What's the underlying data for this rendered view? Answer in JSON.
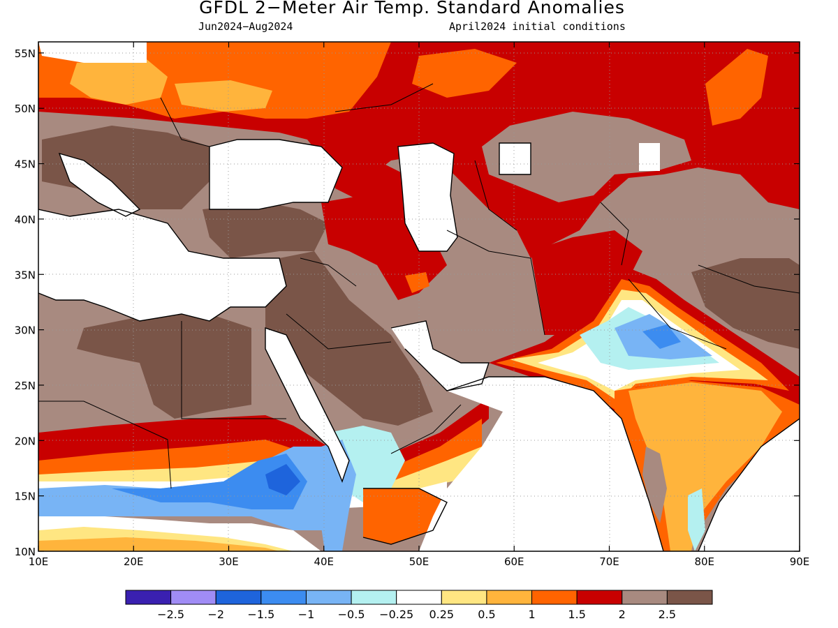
{
  "title": "GFDL 2−Meter Air Temp. Standard Anomalies",
  "subtitle_left": "Jun2024−Aug2024",
  "subtitle_right": "April2024 initial conditions",
  "map": {
    "lon_range": [
      10,
      90
    ],
    "lat_range": [
      10,
      56
    ],
    "lon_ticks": [
      "10E",
      "20E",
      "30E",
      "40E",
      "50E",
      "60E",
      "70E",
      "80E",
      "90E"
    ],
    "lat_ticks": [
      "10N",
      "15N",
      "20N",
      "25N",
      "30N",
      "35N",
      "40N",
      "45N",
      "50N",
      "55N"
    ],
    "gridlines": "dotted"
  },
  "colorbar": {
    "colors": [
      "#3a20b0",
      "#a08cf5",
      "#1e64dc",
      "#3c8cf0",
      "#78b4f5",
      "#b4f0f0",
      "#ffffff",
      "#ffe682",
      "#ffb43c",
      "#ff6400",
      "#c80000",
      "#a88a80",
      "#7a5548"
    ],
    "labels": [
      "−2.5",
      "−2",
      "−1.5",
      "−1",
      "−0.5",
      "−0.25",
      "0.25",
      "0.5",
      "1",
      "1.5",
      "2",
      "2.5"
    ]
  },
  "regions": {
    "europe_north": "1 to 2.5",
    "russia_central_asia": "2 to 2.5",
    "middle_east_iran": "2.5",
    "sahara_arabia": "2.5",
    "pakistan_nw_india": "-1.5 to 0.25",
    "india_peninsula": "0.5 to 1.5",
    "sahel_ethiopia": "-1.5 to 0.5"
  }
}
